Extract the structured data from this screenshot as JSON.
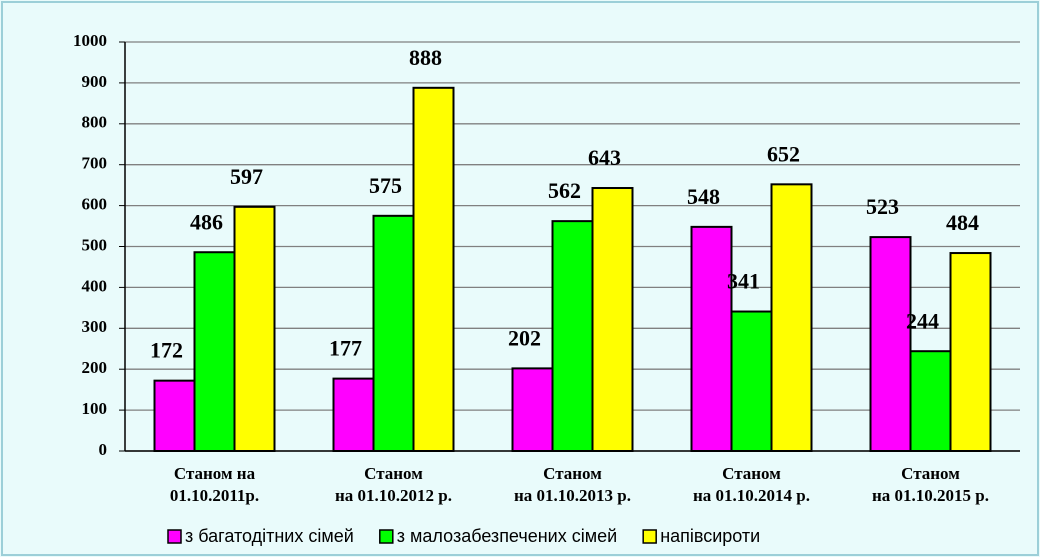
{
  "chart_data": {
    "type": "bar",
    "categories": [
      "Станом на\n01.10.2011р.",
      "Станом\nна 01.10.2012 р.",
      "Станом\nна 01.10.2013 р.",
      "Станом\nна 01.10.2014 р.",
      "Станом\nна 01.10.2015 р."
    ],
    "series": [
      {
        "name": "з багатодітних сімей",
        "color": "#ff00ff",
        "values": [
          172,
          177,
          202,
          548,
          523
        ]
      },
      {
        "name": "з малозабезпечених сімей",
        "color": "#00ff00",
        "values": [
          486,
          575,
          562,
          341,
          244
        ]
      },
      {
        "name": "напівсироти",
        "color": "#ffff00",
        "values": [
          597,
          888,
          643,
          652,
          484
        ]
      }
    ],
    "ylim": [
      0,
      1000
    ],
    "yticks": [
      0,
      100,
      200,
      300,
      400,
      500,
      600,
      700,
      800,
      900,
      1000
    ],
    "grid": true,
    "legend": "bottom"
  }
}
